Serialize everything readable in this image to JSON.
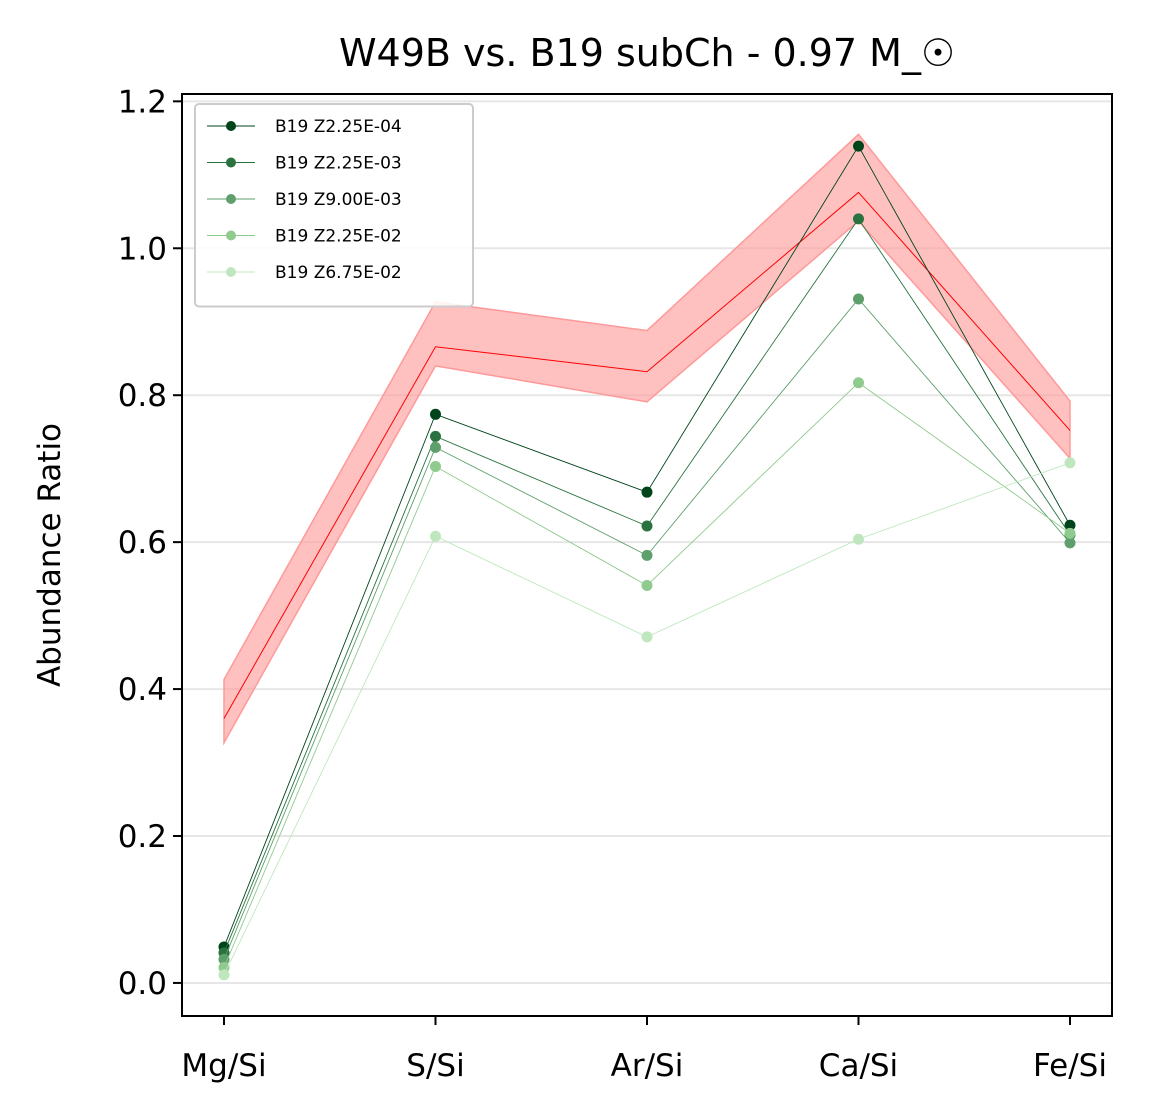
{
  "chart_data": {
    "type": "line",
    "title": "W49B vs. B19 subCh - 0.97 M_☉",
    "xlabel": "",
    "ylabel": "Abundance Ratio",
    "categories": [
      "Mg/Si",
      "S/Si",
      "Ar/Si",
      "Ca/Si",
      "Fe/Si"
    ],
    "ylim": [
      -0.045,
      1.21
    ],
    "yticks": [
      "0.0",
      "0.2",
      "0.4",
      "0.6",
      "0.8",
      "1.0",
      "1.2"
    ],
    "grid": "horizontal",
    "legend_position": "top-left",
    "observed": {
      "color": "#ff0000",
      "band_color": "#ff9999",
      "values": [
        0.36,
        0.866,
        0.832,
        1.076,
        0.752
      ],
      "lower": [
        0.327,
        0.84,
        0.791,
        1.037,
        0.714
      ],
      "upper": [
        0.413,
        0.927,
        0.888,
        1.155,
        0.792
      ]
    },
    "series": [
      {
        "name": "B19 Z2.25E-04",
        "color": "#00441b",
        "values": [
          0.049,
          0.774,
          0.668,
          1.139,
          0.623
        ]
      },
      {
        "name": "B19 Z2.25E-03",
        "color": "#2a7340",
        "values": [
          0.041,
          0.744,
          0.622,
          1.04,
          0.61
        ]
      },
      {
        "name": "B19 Z9.00E-03",
        "color": "#5e9f6b",
        "values": [
          0.032,
          0.729,
          0.582,
          0.931,
          0.599
        ]
      },
      {
        "name": "B19 Z2.25E-02",
        "color": "#8fca8f",
        "values": [
          0.021,
          0.703,
          0.541,
          0.817,
          0.612
        ]
      },
      {
        "name": "B19 Z6.75E-02",
        "color": "#bfe7bf",
        "values": [
          0.011,
          0.608,
          0.471,
          0.604,
          0.708
        ]
      }
    ]
  }
}
